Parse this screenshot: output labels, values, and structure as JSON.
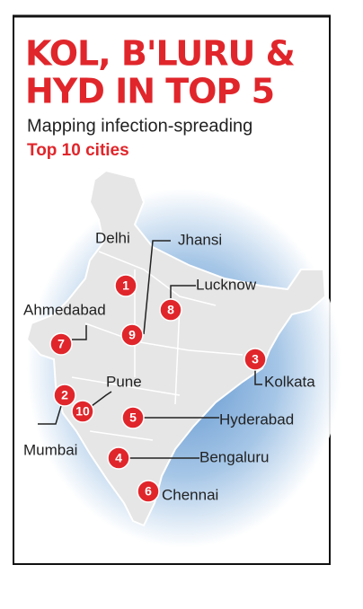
{
  "header": {
    "title_line_1": "KOL, B'LURU &",
    "title_line_2": "HYD IN TOP 5",
    "subtitle": "Mapping infection-spreading",
    "tag": "Top 10 cities"
  },
  "cities": [
    {
      "rank": "1",
      "name": "Delhi"
    },
    {
      "rank": "2",
      "name": "Mumbai"
    },
    {
      "rank": "3",
      "name": "Kolkata"
    },
    {
      "rank": "4",
      "name": "Bengaluru"
    },
    {
      "rank": "5",
      "name": "Hyderabad"
    },
    {
      "rank": "6",
      "name": "Chennai"
    },
    {
      "rank": "7",
      "name": "Ahmedabad"
    },
    {
      "rank": "8",
      "name": "Lucknow"
    },
    {
      "rank": "9",
      "name": "Jhansi"
    },
    {
      "rank": "10",
      "name": "Pune"
    }
  ]
}
